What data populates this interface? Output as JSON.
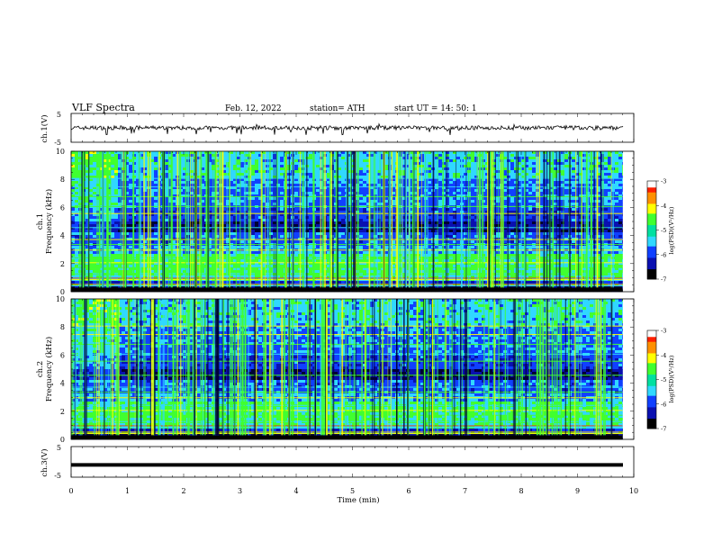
{
  "header": {
    "title": "VLF  Spectra",
    "date": "Feb. 12, 2022",
    "station": "station= ATH",
    "start": "start  UT  =   14: 50: 1"
  },
  "chart_data": [
    {
      "type": "line",
      "panel": "ch1-waveform",
      "ylabel": "ch.1(V)",
      "ylim": [
        -5,
        5
      ],
      "yticks": [
        "5",
        "-5"
      ],
      "xlim": [
        0,
        10
      ],
      "description_values": {
        "baseline": 0,
        "noise_band": [
          -0.8,
          0.8
        ],
        "spike_min": -2.6,
        "spike_max": 1.4
      },
      "color": "#000000"
    },
    {
      "type": "heatmap",
      "panel": "ch1-spectrogram",
      "ylabel": "ch.1\nFrequency  (kHz)",
      "ylabel_line1": "ch.1",
      "ylabel_line2": "Frequency  (kHz)",
      "ylim": [
        0,
        10
      ],
      "yticks": [
        "0",
        "2",
        "4",
        "6",
        "8",
        "10"
      ],
      "xlim": [
        0,
        9.8
      ],
      "colorbar": {
        "label": "log(PSD)(V²/Hz)",
        "range": [
          -7,
          -3
        ],
        "ticks": [
          "-3",
          "-4",
          "-5",
          "-6",
          "-7"
        ]
      }
    },
    {
      "type": "heatmap",
      "panel": "ch2-spectrogram",
      "ylabel_line1": "ch.2",
      "ylabel_line2": "Frequency  (kHz)",
      "ylim": [
        0,
        10
      ],
      "yticks": [
        "0",
        "2",
        "4",
        "6",
        "8",
        "10"
      ],
      "xlim": [
        0,
        9.8
      ],
      "colorbar": {
        "label": "log(PSD)(V²/Hz)",
        "range": [
          -7,
          -3
        ],
        "ticks": [
          "-3",
          "-4",
          "-5",
          "-6",
          "-7"
        ]
      }
    },
    {
      "type": "line",
      "panel": "ch3-waveform",
      "ylabel": "ch.3(V)",
      "ylim": [
        -5,
        5
      ],
      "yticks": [
        "5",
        "-5"
      ],
      "xlim": [
        0,
        10
      ],
      "description_values": {
        "constant_level": -1.0
      },
      "color": "#000000"
    }
  ],
  "xaxis": {
    "label": "Time  (min)",
    "ticks": [
      "0",
      "1",
      "2",
      "3",
      "4",
      "5",
      "6",
      "7",
      "8",
      "9",
      "10"
    ],
    "range": [
      0,
      10
    ]
  },
  "colors": {
    "deep": "#000033",
    "dark_blue": "#0a10b0",
    "blue": "#1040ff",
    "cyan": "#30d8ff",
    "green": "#40ff30",
    "yellow": "#ffff00",
    "red": "#ff2000"
  }
}
